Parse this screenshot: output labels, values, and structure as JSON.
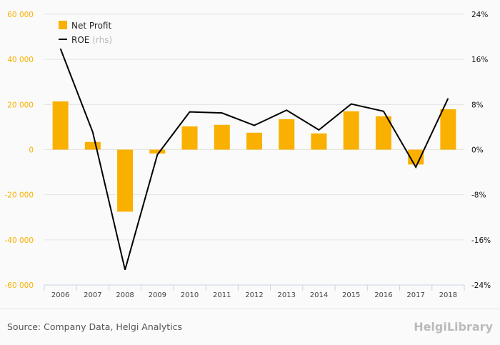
{
  "chart_data": {
    "type": "bar+line",
    "categories": [
      "2006",
      "2007",
      "2008",
      "2009",
      "2010",
      "2011",
      "2012",
      "2013",
      "2014",
      "2015",
      "2016",
      "2017",
      "2018"
    ],
    "series": [
      {
        "name": "Net Profit",
        "type": "bar",
        "axis": "left",
        "color": "#f9b000",
        "values": [
          21400,
          3400,
          -27500,
          -1700,
          10300,
          11000,
          7500,
          13500,
          7200,
          17000,
          14800,
          -6600,
          17900
        ]
      },
      {
        "name": "ROE",
        "name_suffix": "(rhs)",
        "type": "line",
        "axis": "right",
        "color": "#000000",
        "values": [
          17.9,
          3.1,
          -21.3,
          -0.9,
          6.7,
          6.5,
          4.3,
          7.0,
          3.5,
          8.1,
          6.8,
          -3.1,
          9.1
        ]
      }
    ],
    "left_axis": {
      "ylim": [
        -60000,
        60000
      ],
      "ticks": [
        "60 000",
        "40 000",
        "20 000",
        "0",
        "-20 000",
        "-40 000",
        "-60 000"
      ],
      "color": "#f9b000"
    },
    "right_axis": {
      "ylim": [
        -24,
        24
      ],
      "ticks": [
        "24%",
        "16%",
        "8%",
        "0%",
        "-8%",
        "-16%",
        "-24%"
      ]
    },
    "grid": true,
    "legend_position": "top-left"
  },
  "footer": {
    "source": "Source: Company Data, Helgi Analytics",
    "logo": "HelgiLibrary"
  }
}
